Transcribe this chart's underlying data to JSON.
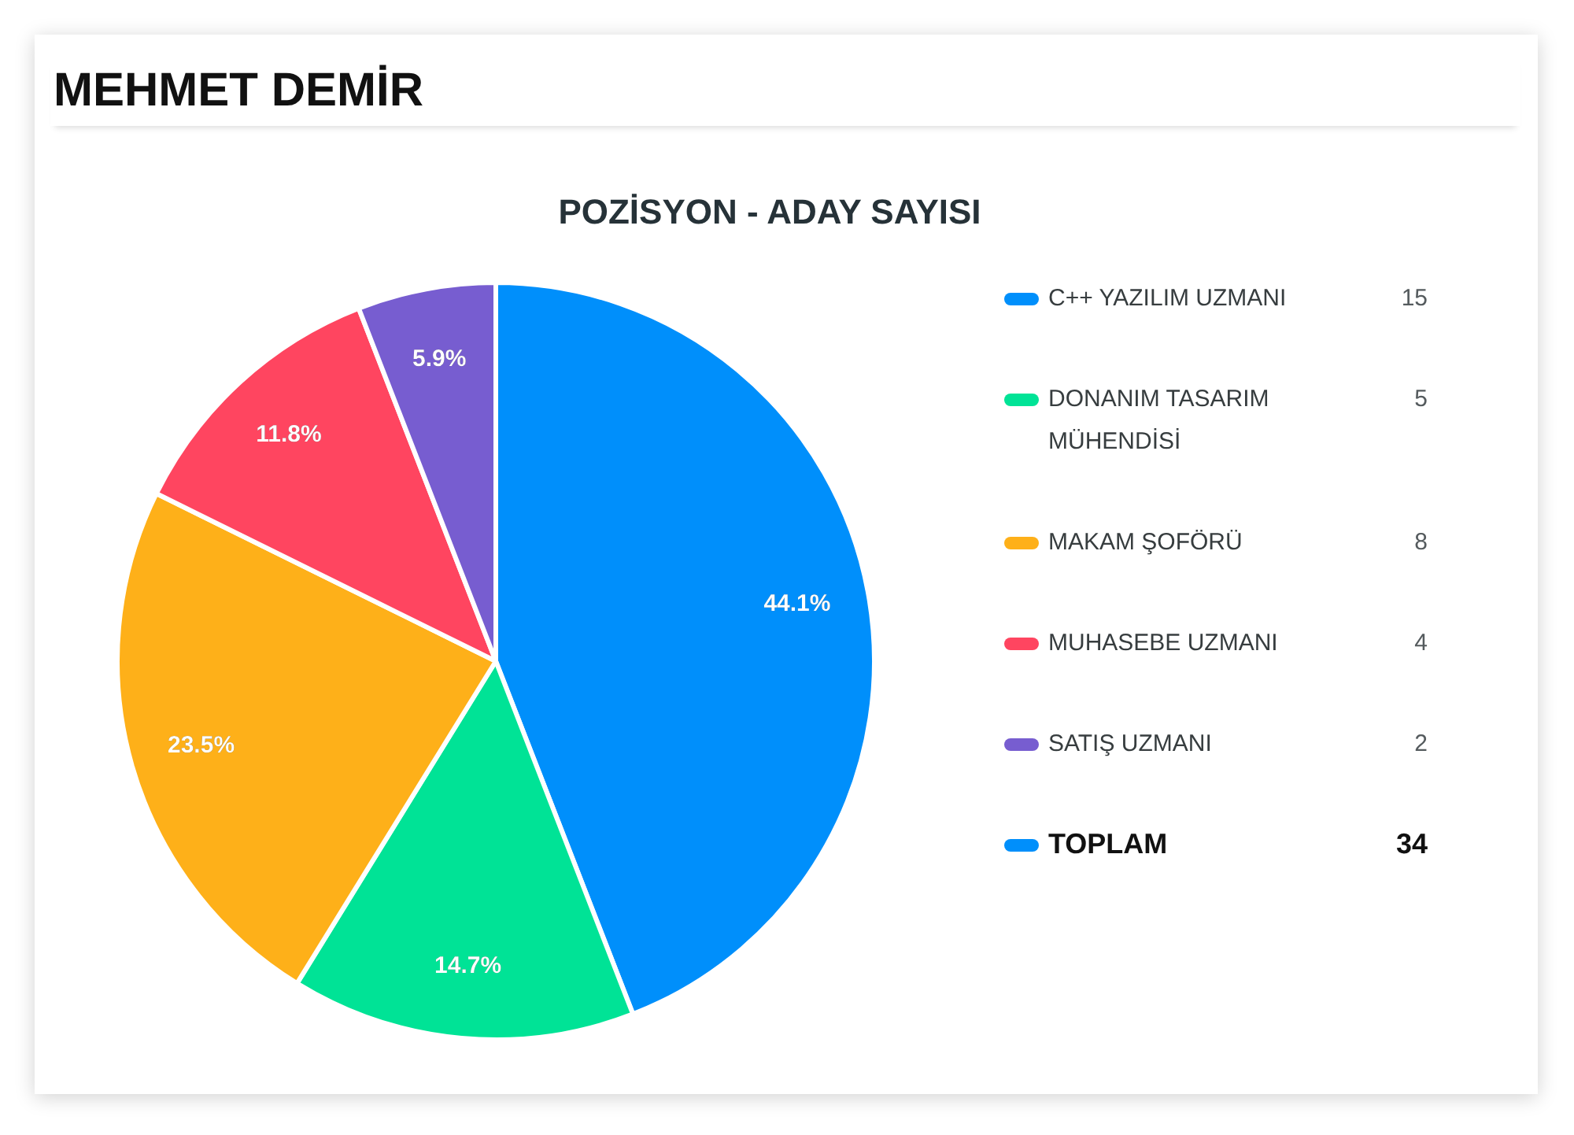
{
  "chart_data": {
    "type": "pie",
    "title": "MEHMET DEMİR",
    "subtitle": "POZİSYON - ADAY SAYISI",
    "categories": [
      "C++ YAZILIM UZMANI",
      "DONANIM TASARIM MÜHENDİSİ",
      "MAKAM ŞOFÖRÜ",
      "MUHASEBE UZMANI",
      "SATIŞ UZMANI"
    ],
    "values": [
      44.1,
      14.7,
      23.5,
      11.8,
      5.9
    ],
    "colors": [
      "#008ffb",
      "#00e396",
      "#feb019",
      "#ff4560",
      "#775dd0"
    ],
    "value_labels": [
      "44.1%",
      "14.7%",
      "23.5%",
      "11.8%",
      "5.9%"
    ],
    "legend": "right",
    "annotations": [
      {
        "text": "15",
        "x": "C++ YAZILIM UZMANI"
      },
      {
        "text": "5",
        "x": "DONANIM TASARIM MÜHENDİSİ"
      },
      {
        "text": "8",
        "x": "MAKAM ŞOFÖRÜ"
      },
      {
        "text": "4",
        "x": "MUHASEBE UZMANI"
      },
      {
        "text": "2",
        "x": "SATIŞ UZMANI"
      },
      "TOPLAM"
    ],
    "totals": [
      "34"
    ]
  }
}
